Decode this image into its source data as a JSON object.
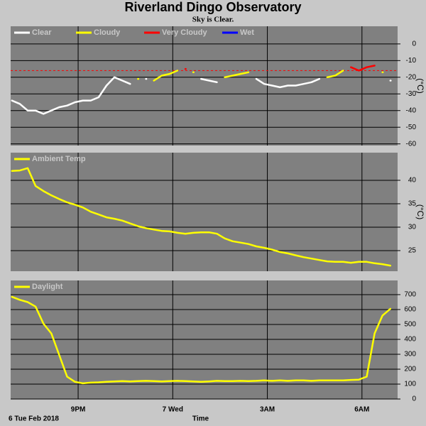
{
  "chart_data": [
    {
      "type": "line",
      "title": "Riverland Dingo Observatory",
      "subtitle": "Sky is Clear.",
      "ylabel": "(°C)",
      "x": [
        18.9,
        19.15,
        19.4,
        19.65,
        19.9,
        20.15,
        20.4,
        20.65,
        20.9,
        21.15,
        21.4,
        21.65,
        21.9,
        22.15,
        22.4,
        22.65,
        22.9,
        23.15,
        23.4,
        23.65,
        23.9,
        24.15,
        24.4,
        24.65,
        24.9,
        25.15,
        25.4,
        25.65,
        25.9,
        26.15,
        26.4,
        26.65,
        26.9,
        27.15,
        27.4,
        27.65,
        27.9,
        28.15,
        28.4,
        28.65,
        28.9,
        29.15,
        29.4,
        29.65,
        29.9,
        30.15,
        30.4,
        30.65,
        30.9
      ],
      "xlim": [
        18.86,
        31.13
      ],
      "xticks": [
        {
          "value": 21,
          "label": "9PM"
        },
        {
          "value": 24,
          "label": "7 Wed"
        },
        {
          "value": 27,
          "label": "3AM"
        },
        {
          "value": 30,
          "label": "6AM"
        }
      ],
      "ylim": [
        -61,
        10.6
      ],
      "yticks": [
        0,
        -10,
        -20,
        -30,
        -40,
        -50,
        -60
      ],
      "grid": true,
      "threshold": -16,
      "threshold_color": "#ff0000",
      "series": [
        {
          "name": "Clear",
          "color": "#ffffff",
          "values": [
            -34,
            -36,
            -40,
            -40,
            -42,
            -40,
            -38,
            -37,
            -35,
            -34,
            -34,
            -32,
            -25,
            -20,
            -22,
            -24,
            null,
            -21,
            null,
            null,
            null,
            null,
            null,
            null,
            -21,
            -22,
            -23,
            null,
            null,
            null,
            null,
            -21,
            -24,
            -25,
            -26,
            -25,
            -25,
            -24,
            -23,
            -21,
            null,
            null,
            null,
            null,
            null,
            null,
            null,
            null,
            -22
          ]
        },
        {
          "name": "Cloudy",
          "color": "#ffff00",
          "values": [
            null,
            null,
            null,
            null,
            null,
            null,
            null,
            null,
            null,
            null,
            null,
            null,
            null,
            null,
            null,
            null,
            -21,
            null,
            -22,
            -19,
            -18,
            -16,
            null,
            -17,
            null,
            null,
            null,
            -20,
            -19,
            -18,
            -17,
            null,
            null,
            null,
            null,
            null,
            null,
            null,
            null,
            null,
            -20,
            -19,
            -16,
            null,
            null,
            null,
            null,
            -17,
            null
          ]
        },
        {
          "name": "Very Cloudy",
          "color": "#ff0000",
          "values": [
            null,
            null,
            null,
            null,
            null,
            null,
            null,
            null,
            null,
            null,
            null,
            null,
            null,
            null,
            null,
            null,
            null,
            null,
            null,
            null,
            null,
            null,
            -15,
            null,
            null,
            null,
            null,
            null,
            null,
            null,
            null,
            null,
            null,
            null,
            null,
            null,
            null,
            null,
            null,
            null,
            null,
            null,
            null,
            -14,
            -16,
            -14,
            -13,
            null,
            null
          ]
        },
        {
          "name": "Wet",
          "color": "#0000ff",
          "values": [
            null,
            null,
            null,
            null,
            null,
            null,
            null,
            null,
            null,
            null,
            null,
            null,
            null,
            null,
            null,
            null,
            null,
            null,
            null,
            null,
            null,
            null,
            null,
            null,
            null,
            null,
            null,
            null,
            null,
            null,
            null,
            null,
            null,
            null,
            null,
            null,
            null,
            null,
            null,
            null,
            null,
            null,
            null,
            null,
            null,
            null,
            null,
            null,
            null
          ]
        }
      ]
    },
    {
      "type": "line",
      "ylabel": "(°C)",
      "x": [
        18.9,
        19.15,
        19.4,
        19.65,
        19.9,
        20.15,
        20.4,
        20.65,
        20.9,
        21.15,
        21.4,
        21.65,
        21.9,
        22.15,
        22.4,
        22.65,
        22.9,
        23.15,
        23.4,
        23.65,
        23.9,
        24.15,
        24.4,
        24.65,
        24.9,
        25.15,
        25.4,
        25.65,
        25.9,
        26.15,
        26.4,
        26.65,
        26.9,
        27.15,
        27.4,
        27.65,
        27.9,
        28.15,
        28.4,
        28.65,
        28.9,
        29.15,
        29.4,
        29.65,
        29.9,
        30.15,
        30.4,
        30.65,
        30.9
      ],
      "xlim": [
        18.86,
        31.13
      ],
      "xticks": [
        {
          "value": 21,
          "label": "9PM"
        },
        {
          "value": 24,
          "label": "7 Wed"
        },
        {
          "value": 27,
          "label": "3AM"
        },
        {
          "value": 30,
          "label": "6AM"
        }
      ],
      "ylim": [
        20.6,
        45.9
      ],
      "yticks": [
        25,
        30,
        35,
        40
      ],
      "grid": true,
      "series": [
        {
          "name": "Ambient Temp",
          "color": "#ffff00",
          "values": [
            42,
            42.1,
            42.6,
            38.8,
            37.7,
            36.8,
            36,
            35.3,
            34.8,
            34.2,
            33.3,
            32.7,
            32.1,
            31.8,
            31.4,
            30.8,
            30.2,
            29.8,
            29.5,
            29.2,
            29.1,
            28.8,
            28.6,
            28.8,
            28.9,
            28.9,
            28.6,
            27.6,
            27,
            26.7,
            26.4,
            25.9,
            25.6,
            25.2,
            24.7,
            24.4,
            24,
            23.6,
            23.3,
            23,
            22.7,
            22.6,
            22.6,
            22.4,
            22.6,
            22.6,
            22.3,
            22.1,
            21.8
          ]
        }
      ]
    },
    {
      "type": "line",
      "xlabel": "Time",
      "date_label": "6 Tue Feb 2018",
      "x": [
        18.9,
        19.15,
        19.4,
        19.65,
        19.9,
        20.15,
        20.4,
        20.65,
        20.9,
        21.15,
        21.4,
        21.65,
        21.9,
        22.15,
        22.4,
        22.65,
        22.9,
        23.15,
        23.4,
        23.65,
        23.9,
        24.15,
        24.4,
        24.65,
        24.9,
        25.15,
        25.4,
        25.65,
        25.9,
        26.15,
        26.4,
        26.65,
        26.9,
        27.15,
        27.4,
        27.65,
        27.9,
        28.15,
        28.4,
        28.65,
        28.9,
        29.15,
        29.4,
        29.65,
        29.9,
        30.15,
        30.4,
        30.65,
        30.9
      ],
      "xlim": [
        18.86,
        31.13
      ],
      "xticks": [
        {
          "value": 21,
          "label": "9PM"
        },
        {
          "value": 24,
          "label": "7 Wed"
        },
        {
          "value": 27,
          "label": "3AM"
        },
        {
          "value": 30,
          "label": "6AM"
        }
      ],
      "ylim": [
        0,
        795
      ],
      "yticks": [
        0,
        100,
        200,
        300,
        400,
        500,
        600,
        700
      ],
      "grid": true,
      "series": [
        {
          "name": "Daylight",
          "color": "#ffff00",
          "values": [
            685,
            665,
            650,
            620,
            505,
            440,
            295,
            150,
            115,
            105,
            110,
            112,
            115,
            118,
            120,
            118,
            120,
            122,
            120,
            118,
            120,
            122,
            120,
            118,
            115,
            118,
            122,
            120,
            120,
            122,
            120,
            122,
            125,
            122,
            125,
            122,
            125,
            125,
            122,
            125,
            125,
            125,
            125,
            128,
            130,
            150,
            440,
            560,
            605
          ]
        }
      ]
    }
  ]
}
